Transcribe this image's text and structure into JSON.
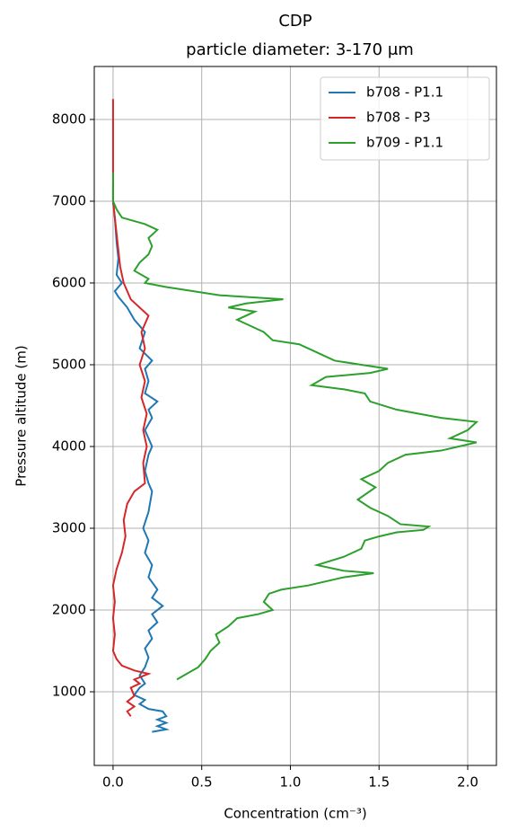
{
  "chart_data": {
    "type": "line",
    "title": "CDP",
    "subtitle": "particle diameter: 3-170 μm",
    "x_label": "Concentration (cm⁻³)",
    "y_label": "Pressure altitude (m)",
    "xlim": [
      -0.106,
      2.162
    ],
    "ylim": [
      99,
      8648
    ],
    "xticks": [
      {
        "value": 0,
        "label": "0.0"
      },
      0.5,
      {
        "value": 1,
        "label": "1.0"
      },
      1.5,
      {
        "value": 2,
        "label": "2.0"
      }
    ],
    "yticks": [
      1000,
      2000,
      3000,
      4000,
      5000,
      6000,
      7000,
      8000
    ],
    "grid": true,
    "legend": "upper right",
    "series": [
      {
        "name": "b708 - P1.1",
        "color": "#1f77b4",
        "x": [
          0.22,
          0.3,
          0.25,
          0.3,
          0.25,
          0.3,
          0.28,
          0.2,
          0.15,
          0.18,
          0.12,
          0.15,
          0.18,
          0.15,
          0.18,
          0.2,
          0.18,
          0.22,
          0.2,
          0.25,
          0.22,
          0.28,
          0.22,
          0.25,
          0.2,
          0.22,
          0.18,
          0.2,
          0.17,
          0.2,
          0.22,
          0.2,
          0.18,
          0.2,
          0.22,
          0.18,
          0.22,
          0.2,
          0.25,
          0.18,
          0.2,
          0.18,
          0.22,
          0.15,
          0.18,
          0.12,
          0.08,
          0.03,
          0.01,
          0.05,
          0.02,
          0.03,
          0.02,
          0.01,
          0,
          0
        ],
        "y": [
          510,
          540,
          580,
          620,
          660,
          700,
          760,
          790,
          850,
          900,
          960,
          1050,
          1100,
          1200,
          1300,
          1420,
          1530,
          1650,
          1750,
          1850,
          1950,
          2050,
          2150,
          2250,
          2400,
          2550,
          2700,
          2850,
          3000,
          3200,
          3450,
          3550,
          3700,
          3900,
          4000,
          4200,
          4350,
          4450,
          4550,
          4650,
          4800,
          4950,
          5050,
          5200,
          5400,
          5550,
          5700,
          5830,
          5900,
          6000,
          6100,
          6300,
          6500,
          6800,
          7000,
          7200
        ]
      },
      {
        "name": "b708 - P3",
        "color": "#d62728",
        "x": [
          0.1,
          0.08,
          0.12,
          0.08,
          0.12,
          0.1,
          0.15,
          0.12,
          0.2,
          0.12,
          0.05,
          0.02,
          0,
          0.01,
          0,
          0.01,
          0,
          0.02,
          0.05,
          0.07,
          0.06,
          0.08,
          0.12,
          0.18,
          0.17,
          0.19,
          0.17,
          0.19,
          0.16,
          0.18,
          0.15,
          0.18,
          0.16,
          0.2,
          0.1,
          0.06,
          0.04,
          0.03,
          0.02,
          0.01,
          0,
          0,
          0
        ],
        "y": [
          700,
          760,
          820,
          880,
          950,
          1050,
          1100,
          1150,
          1220,
          1260,
          1320,
          1400,
          1500,
          1700,
          1900,
          2100,
          2300,
          2500,
          2700,
          2900,
          3100,
          3300,
          3450,
          3550,
          3800,
          4000,
          4200,
          4400,
          4600,
          4800,
          5000,
          5200,
          5400,
          5600,
          5800,
          6000,
          6200,
          6400,
          6600,
          6800,
          7000,
          7500,
          8250
        ]
      },
      {
        "name": "b709 - P1.1",
        "color": "#2ca02c",
        "x": [
          0.36,
          0.4,
          0.48,
          0.52,
          0.55,
          0.6,
          0.58,
          0.65,
          0.7,
          0.82,
          0.9,
          0.85,
          0.88,
          0.95,
          1.1,
          1.3,
          1.47,
          1.3,
          1.15,
          1.3,
          1.4,
          1.42,
          1.5,
          1.6,
          1.75,
          1.78,
          1.62,
          1.55,
          1.45,
          1.38,
          1.48,
          1.4,
          1.5,
          1.55,
          1.65,
          1.85,
          1.95,
          2.05,
          1.9,
          2.0,
          2.05,
          1.85,
          1.6,
          1.45,
          1.42,
          1.3,
          1.12,
          1.2,
          1.45,
          1.55,
          1.4,
          1.25,
          1.15,
          1.05,
          0.9,
          0.85,
          0.75,
          0.7,
          0.8,
          0.65,
          0.75,
          0.96,
          0.6,
          0.3,
          0.18,
          0.2,
          0.12,
          0.15,
          0.2,
          0.22,
          0.2,
          0.25,
          0.18,
          0.05,
          0.02,
          0,
          0
        ],
        "y": [
          1150,
          1200,
          1300,
          1400,
          1500,
          1600,
          1700,
          1800,
          1900,
          1950,
          2000,
          2100,
          2200,
          2250,
          2300,
          2400,
          2450,
          2480,
          2550,
          2650,
          2750,
          2850,
          2900,
          2950,
          2980,
          3020,
          3050,
          3150,
          3250,
          3350,
          3500,
          3600,
          3700,
          3800,
          3900,
          3950,
          4000,
          4050,
          4100,
          4200,
          4300,
          4350,
          4450,
          4550,
          4650,
          4700,
          4750,
          4850,
          4900,
          4950,
          5000,
          5050,
          5150,
          5250,
          5300,
          5400,
          5500,
          5550,
          5650,
          5700,
          5750,
          5800,
          5850,
          5950,
          6000,
          6050,
          6150,
          6250,
          6350,
          6450,
          6550,
          6650,
          6720,
          6800,
          6900,
          7000,
          7350
        ]
      }
    ]
  }
}
